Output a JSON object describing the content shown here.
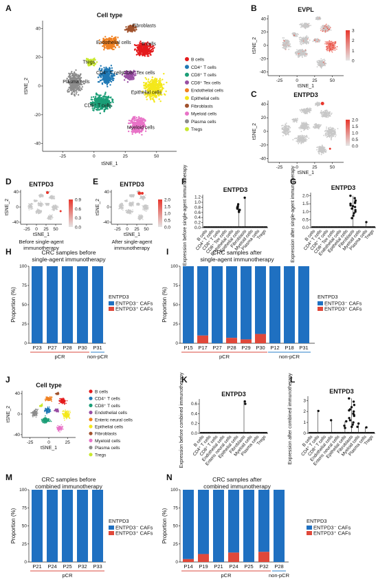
{
  "figure": {
    "panels": {
      "A": {
        "label": "A",
        "title": "Cell type",
        "xlabel": "tSNE_1",
        "ylabel": "tSNE_2",
        "xticks": [
          "-25",
          "0",
          "25",
          "50"
        ],
        "yticks": [
          "40",
          "20",
          "0",
          "-20",
          "-40"
        ],
        "legend": [
          {
            "name": "B cells",
            "color": "#e41a1c"
          },
          {
            "name": "CD4⁺ T cells",
            "color": "#1f78b4"
          },
          {
            "name": "CD8⁺ T cells",
            "color": "#1b9e77"
          },
          {
            "name": "CD8⁺ Tex cells",
            "color": "#984ea3"
          },
          {
            "name": "Endothelial cells",
            "color": "#f08020"
          },
          {
            "name": "Epithelial cells",
            "color": "#f4e81a"
          },
          {
            "name": "Fibroblasts",
            "color": "#a0522d"
          },
          {
            "name": "Myeloid cells",
            "color": "#e873c7"
          },
          {
            "name": "Plasma cells",
            "color": "#8c8c8c"
          },
          {
            "name": "Tregs",
            "color": "#c8e82c"
          }
        ],
        "cluster_labels": [
          "Fibroblasts",
          "Endothelial cells",
          "B cells",
          "Tregs",
          "CD4⁺ T cells",
          "CD8⁺ Tex cells",
          "Plasma cells",
          "Epithelial cells",
          "CD8⁺ T cells",
          "Myeloid cells"
        ]
      },
      "B": {
        "label": "B",
        "title": "EVPL",
        "xlabel": "tSNE_1",
        "ylabel": "tSNE_2",
        "xticks": [
          "-25",
          "0",
          "25",
          "50"
        ],
        "yticks": [
          "40",
          "20",
          "0",
          "-20",
          "-40"
        ],
        "colorbar": [
          "3",
          "2",
          "1",
          "0"
        ]
      },
      "C": {
        "label": "C",
        "title": "ENTPD3",
        "xlabel": "tSNE_1",
        "ylabel": "tSNE_2",
        "xticks": [
          "-25",
          "0",
          "25",
          "50"
        ],
        "yticks": [
          "40",
          "20",
          "0",
          "-20",
          "-40"
        ],
        "colorbar": [
          "2.0",
          "1.5",
          "1.0",
          "0.5",
          "0.0"
        ]
      },
      "D": {
        "label": "D",
        "title": "ENTPD3",
        "xlabel": "tSNE_1",
        "ylabel": "tSNE_2",
        "xticks": [
          "-25",
          "0",
          "25",
          "50"
        ],
        "yticks": [
          "40",
          "0",
          "-40"
        ],
        "colorbar": [
          "0.9",
          "0.6",
          "0.3",
          "0.0"
        ],
        "caption": [
          "Before single-agent",
          "immunotherapy"
        ]
      },
      "E": {
        "label": "E",
        "title": "ENTPD3",
        "xlabel": "tSNE_1",
        "ylabel": "tSNE_2",
        "xticks": [
          "-25",
          "0",
          "25",
          "50"
        ],
        "yticks": [
          "40",
          "0",
          "-40"
        ],
        "colorbar": [
          "2.0",
          "1.5",
          "1.0",
          "0.5",
          "0.0"
        ],
        "caption": [
          "After single-agent",
          "immunotherapy"
        ]
      },
      "J": {
        "label": "J",
        "title": "Cell type",
        "xlabel": "tSNE_1",
        "ylabel": "tSNE_2",
        "xticks": [
          "-25",
          "0",
          "25"
        ],
        "yticks": [
          "40",
          "0",
          "-40"
        ],
        "legend": [
          {
            "name": "B cells",
            "color": "#e41a1c"
          },
          {
            "name": "CD4⁺ T cells",
            "color": "#1f78b4"
          },
          {
            "name": "CD8⁺ T cells",
            "color": "#1b9e77"
          },
          {
            "name": "Endothelial cells",
            "color": "#984ea3"
          },
          {
            "name": "Enteric neural cells",
            "color": "#f08020"
          },
          {
            "name": "Epithelial cells",
            "color": "#f4e81a"
          },
          {
            "name": "Fibroblasts",
            "color": "#a0522d"
          },
          {
            "name": "Myeloid cells",
            "color": "#e873c7"
          },
          {
            "name": "Plasma cells",
            "color": "#8c8c8c"
          },
          {
            "name": "Tregs",
            "color": "#c8e82c"
          }
        ]
      }
    }
  },
  "chart_data": [
    {
      "panel": "F",
      "label": "F",
      "type": "scatter",
      "title": "ENTPD3",
      "ylabel": "Expression before single-agent immunotherapy",
      "ylim": [
        0,
        1.3
      ],
      "yticks": [
        "1.2",
        "1.0",
        "0.8",
        "0.6",
        "0.4",
        "0.2",
        "0.0"
      ],
      "categories": [
        "B cells",
        "CD4⁺ T cells",
        "CD8⁺ T cells",
        "CD8⁺ Tex cells",
        "Endothelial cells",
        "Epithelial cells",
        "Fibroblasts",
        "Myeloid cells",
        "Plasma cells",
        "Tregs"
      ],
      "points": [
        {
          "cat": 6,
          "y": 1.18
        },
        {
          "cat": 5,
          "y": 0.92
        },
        {
          "cat": 5,
          "y": 0.8
        },
        {
          "cat": 5,
          "y": 0.75
        },
        {
          "cat": 5,
          "y": 0.7
        },
        {
          "cat": 5,
          "y": 0.68
        },
        {
          "cat": 5,
          "y": 0.62
        },
        {
          "cat": 5,
          "y": 0.85
        }
      ]
    },
    {
      "panel": "G",
      "label": "G",
      "type": "scatter",
      "title": "ENTPD3",
      "ylabel": "Expression after single-agent immunotherapy",
      "ylim": [
        0,
        2.2
      ],
      "yticks": [
        "2.0",
        "1.5",
        "1.0",
        "0.5",
        "0.0"
      ],
      "categories": [
        "B cells",
        "CD4⁺ T cells",
        "CD8⁺ T cells",
        "CD8⁺ Tex cells",
        "Endothelial cells",
        "Epithelial cells",
        "Fibroblasts",
        "Myeloid cells",
        "Plasma cells",
        "Tregs"
      ],
      "points": [
        {
          "cat": 6,
          "y": 2.0
        },
        {
          "cat": 6,
          "y": 1.85
        },
        {
          "cat": 6,
          "y": 1.7
        },
        {
          "cat": 6,
          "y": 1.6
        },
        {
          "cat": 6,
          "y": 1.5
        },
        {
          "cat": 6,
          "y": 1.4
        },
        {
          "cat": 6,
          "y": 1.3
        },
        {
          "cat": 6,
          "y": 1.2
        },
        {
          "cat": 6,
          "y": 1.1
        },
        {
          "cat": 6,
          "y": 1.0
        },
        {
          "cat": 6,
          "y": 0.9
        },
        {
          "cat": 6,
          "y": 0.75
        },
        {
          "cat": 6,
          "y": 0.6
        },
        {
          "cat": 6,
          "y": 1.55
        },
        {
          "cat": 6,
          "y": 1.35
        },
        {
          "cat": 8,
          "y": 0.35
        }
      ]
    },
    {
      "panel": "H",
      "label": "H",
      "type": "bar",
      "title": [
        "CRC samples before",
        "single-agent immunotherapy"
      ],
      "ylabel": "Proportion (%)",
      "ylim": [
        0,
        100
      ],
      "yticks": [
        "100",
        "75",
        "50",
        "25",
        "0"
      ],
      "categories": [
        "P23",
        "P27",
        "P28",
        "P30",
        "P31"
      ],
      "series": [
        {
          "name": "ENTPD3⁻ CAFs",
          "color": "#1f70c1",
          "values": [
            100,
            100,
            100,
            100,
            100
          ]
        },
        {
          "name": "ENTPD3⁺ CAFs",
          "color": "#e0483a",
          "values": [
            0,
            0,
            0,
            0,
            0
          ]
        }
      ],
      "legend_title": "ENTPD3",
      "groups": [
        {
          "name": "pCR",
          "color": "#d94a3d",
          "from": 0,
          "to": 3
        },
        {
          "name": "non-pCR",
          "color": "#2a7fc8",
          "from": 4,
          "to": 4
        }
      ]
    },
    {
      "panel": "I",
      "label": "I",
      "type": "bar",
      "title": [
        "CRC samples after",
        "single-agent immunotherapy"
      ],
      "ylabel": "Proportion (%)",
      "ylim": [
        0,
        100
      ],
      "yticks": [
        "100",
        "75",
        "50",
        "25",
        "0"
      ],
      "categories": [
        "P15",
        "P17",
        "P27",
        "P28",
        "P29",
        "P30",
        "P12",
        "P18",
        "P31"
      ],
      "series": [
        {
          "name": "ENTPD3⁻ CAFs",
          "color": "#1f70c1",
          "values": [
            100,
            90,
            100,
            93,
            95,
            88,
            100,
            100,
            100
          ]
        },
        {
          "name": "ENTPD3⁺ CAFs",
          "color": "#e0483a",
          "values": [
            0,
            10,
            0,
            7,
            5,
            12,
            0,
            0,
            0
          ]
        }
      ],
      "legend_title": "ENTPD3",
      "groups": [
        {
          "name": "pCR",
          "color": "#d94a3d",
          "from": 0,
          "to": 5
        },
        {
          "name": "non-pCR",
          "color": "#2a7fc8",
          "from": 6,
          "to": 8
        }
      ]
    },
    {
      "panel": "K",
      "label": "K",
      "type": "scatter",
      "title": "ENTPD3",
      "ylabel": "Expression before combined immunotherapy",
      "ylim": [
        0,
        0.7
      ],
      "yticks": [
        "0.6",
        "0.4",
        "0.2",
        "0.0"
      ],
      "categories": [
        "B cells",
        "CD4⁺ T cells",
        "CD8⁺ T cells",
        "Endothelial cells",
        "Enteric neural cells",
        "Epithelial cells",
        "Fibroblasts",
        "Myeloid cells",
        "Plasma cells",
        "Tregs"
      ],
      "points": [
        {
          "cat": 6,
          "y": 0.65
        },
        {
          "cat": 6,
          "y": 0.6
        }
      ]
    },
    {
      "panel": "L",
      "label": "L",
      "type": "scatter",
      "title": "ENTPD3",
      "ylabel": "Expression after combined immunotherapy",
      "ylim": [
        0,
        3.4
      ],
      "yticks": [
        "3",
        "2",
        "1",
        "0"
      ],
      "categories": [
        "B cells",
        "CD4⁺ T cells",
        "CD8⁺ T cells",
        "Endothelial cells",
        "Enteric neural cells",
        "Epithelial cells",
        "Fibroblasts",
        "Myeloid cells",
        "Plasma cells",
        "Tregs"
      ],
      "points": [
        {
          "cat": 1,
          "y": 2.05
        },
        {
          "cat": 3,
          "y": 1.2
        },
        {
          "cat": 5,
          "y": 0.7
        },
        {
          "cat": 5,
          "y": 0.5
        },
        {
          "cat": 5,
          "y": 1.1
        },
        {
          "cat": 6,
          "y": 3.2
        },
        {
          "cat": 6,
          "y": 2.9
        },
        {
          "cat": 6,
          "y": 2.6
        },
        {
          "cat": 6,
          "y": 2.4
        },
        {
          "cat": 6,
          "y": 2.2
        },
        {
          "cat": 6,
          "y": 2.0
        },
        {
          "cat": 6,
          "y": 1.8
        },
        {
          "cat": 6,
          "y": 1.6
        },
        {
          "cat": 6,
          "y": 1.4
        },
        {
          "cat": 6,
          "y": 1.2
        },
        {
          "cat": 6,
          "y": 1.0
        },
        {
          "cat": 6,
          "y": 0.8
        },
        {
          "cat": 6,
          "y": 0.6
        },
        {
          "cat": 6,
          "y": 2.1
        },
        {
          "cat": 6,
          "y": 1.7
        },
        {
          "cat": 7,
          "y": 0.9
        },
        {
          "cat": 7,
          "y": 0.6
        },
        {
          "cat": 8,
          "y": 0.55
        }
      ]
    },
    {
      "panel": "M",
      "label": "M",
      "type": "bar",
      "title": [
        "CRC samples before",
        "combined immunotherapy"
      ],
      "ylabel": "Proportion (%)",
      "ylim": [
        0,
        100
      ],
      "yticks": [
        "100",
        "75",
        "50",
        "25",
        "0"
      ],
      "categories": [
        "P21",
        "P24",
        "P25",
        "P32",
        "P33"
      ],
      "series": [
        {
          "name": "ENTPD3⁻ CAFs",
          "color": "#1f70c1",
          "values": [
            100,
            100,
            100,
            100,
            100
          ]
        },
        {
          "name": "ENTPD3⁺ CAFs",
          "color": "#e0483a",
          "values": [
            0,
            0,
            0,
            0,
            0
          ]
        }
      ],
      "legend_title": "ENTPD3",
      "groups": [
        {
          "name": "pCR",
          "color": "#d94a3d",
          "from": 0,
          "to": 4
        }
      ]
    },
    {
      "panel": "N",
      "label": "N",
      "type": "bar",
      "title": [
        "CRC samples after",
        "combined immunotherapy"
      ],
      "ylabel": "Proportion (%)",
      "ylim": [
        0,
        100
      ],
      "yticks": [
        "100",
        "75",
        "50",
        "25",
        "0"
      ],
      "categories": [
        "P14",
        "P19",
        "P21",
        "P24",
        "P25",
        "P32",
        "P28"
      ],
      "series": [
        {
          "name": "ENTPD3⁻ CAFs",
          "color": "#1f70c1",
          "values": [
            96,
            89,
            100,
            87,
            100,
            86,
            100
          ]
        },
        {
          "name": "ENTPD3⁺ CAFs",
          "color": "#e0483a",
          "values": [
            4,
            11,
            0,
            13,
            0,
            14,
            0
          ]
        }
      ],
      "legend_title": "ENTPD3",
      "groups": [
        {
          "name": "pCR",
          "color": "#d94a3d",
          "from": 0,
          "to": 5
        },
        {
          "name": "non-pCR",
          "color": "#2a7fc8",
          "from": 6,
          "to": 6
        }
      ]
    }
  ]
}
